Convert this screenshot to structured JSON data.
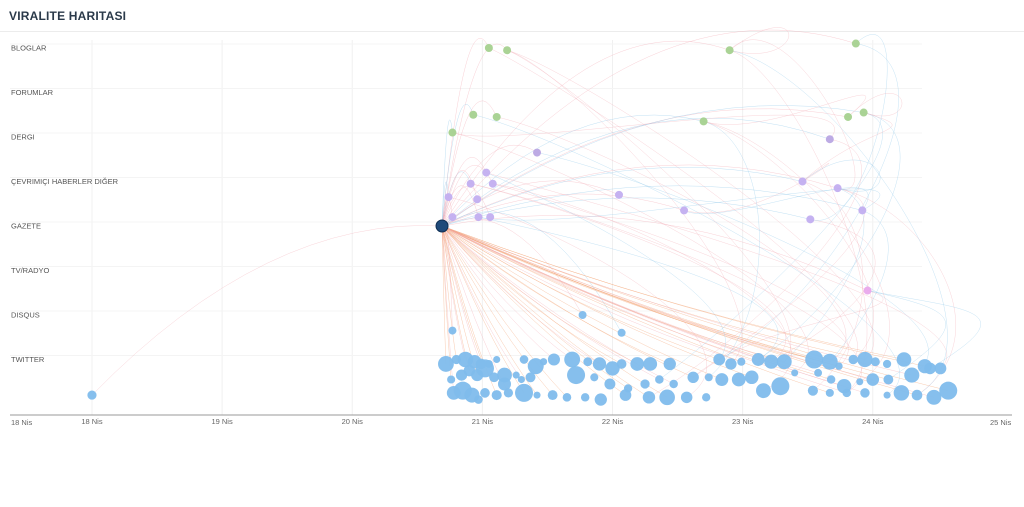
{
  "header": {
    "title": "VIRALITE HARITASI"
  },
  "chart_data": {
    "type": "scatter",
    "title": "VIRALITE HARITASI",
    "categories": [
      "BLOGLAR",
      "FORUMLAR",
      "DERGI",
      "ÇEVRIMIÇI HABERLER DIĞER",
      "GAZETE",
      "TV/RADYO",
      "DISQUS",
      "TWITTER"
    ],
    "x_axis": {
      "unit": "day (Nis)",
      "range": [
        17.25,
        24.95
      ],
      "edge_labels": [
        "18 Nis",
        "25 Nis"
      ],
      "tick_labels": [
        {
          "day": 17.88,
          "label": "18 Nis"
        },
        {
          "day": 18.88,
          "label": "19 Nis"
        },
        {
          "day": 19.88,
          "label": "20 Nis"
        },
        {
          "day": 20.88,
          "label": "21 Nis"
        },
        {
          "day": 21.88,
          "label": "22 Nis"
        },
        {
          "day": 22.88,
          "label": "23 Nis"
        },
        {
          "day": 23.88,
          "label": "24 Nis"
        }
      ]
    },
    "grid": true,
    "colors": {
      "BLOGLAR": "#a5d18f",
      "FORUMLAR": "#a5d18f",
      "DERGI": "#b9a6e3",
      "ÇEVRIMIÇI HABERLER DIĞER": "#c2aef0",
      "GAZETE": "#c2aef0",
      "TV/RADYO": "#e9a8ec",
      "DISQUS": "#7fbcec",
      "TWITTER": "#7fbcec",
      "origin": "#1f4a7a",
      "link_orange": "#f2a070",
      "link_blue": "#8ec7ea",
      "link_pink": "#f2a9b4"
    },
    "origin": {
      "day": 20.57,
      "category": "GAZETE"
    },
    "series": [
      {
        "category": "BLOGLAR",
        "points": [
          [
            20.93,
            0.0
          ],
          [
            21.07,
            0.05
          ],
          [
            22.78,
            0.05
          ],
          [
            23.75,
            -0.1
          ]
        ]
      },
      {
        "category": "FORUMLAR",
        "points": [
          [
            20.81,
            0.5
          ],
          [
            20.99,
            0.55
          ],
          [
            22.58,
            0.65
          ],
          [
            23.69,
            0.55
          ],
          [
            23.81,
            0.45
          ],
          [
            20.65,
            0.9
          ]
        ]
      },
      {
        "category": "DERGI",
        "points": [
          [
            21.3,
            0.35
          ],
          [
            23.55,
            0.05
          ]
        ]
      },
      {
        "category": "ÇEVRIMIÇI HABERLER DIĞER",
        "points": [
          [
            20.91,
            -0.2
          ],
          [
            20.79,
            0.05
          ],
          [
            20.96,
            0.05
          ],
          [
            20.62,
            0.35
          ],
          [
            20.84,
            0.4
          ],
          [
            21.93,
            0.3
          ],
          [
            23.34,
            0.0
          ],
          [
            23.61,
            0.15
          ]
        ]
      },
      {
        "category": "GAZETE",
        "points": [
          [
            20.65,
            -0.2
          ],
          [
            20.85,
            -0.2
          ],
          [
            20.94,
            -0.2
          ],
          [
            22.43,
            -0.35
          ],
          [
            23.4,
            -0.15
          ],
          [
            23.8,
            -0.35
          ]
        ]
      },
      {
        "category": "TV/RADYO",
        "points": [
          [
            23.84,
            0.45
          ]
        ]
      },
      {
        "category": "DISQUS",
        "points": [
          [
            21.65,
            0.0
          ],
          [
            20.65,
            0.35
          ],
          [
            21.95,
            0.4
          ]
        ]
      },
      {
        "category": "TWITTER",
        "points": [
          [
            17.88,
            0.8
          ],
          [
            20.6,
            0.1
          ],
          [
            20.68,
            0.0
          ],
          [
            20.75,
            0.0
          ],
          [
            20.82,
            0.05
          ],
          [
            20.87,
            0.1
          ],
          [
            20.93,
            0.1
          ],
          [
            20.99,
            0.0
          ],
          [
            21.05,
            0.35
          ],
          [
            21.14,
            0.35
          ],
          [
            21.2,
            0.0
          ],
          [
            21.29,
            0.15
          ],
          [
            21.35,
            0.05
          ],
          [
            21.43,
            0.0
          ],
          [
            20.64,
            0.45
          ],
          [
            20.72,
            0.35
          ],
          [
            20.78,
            0.25
          ],
          [
            20.84,
            0.35
          ],
          [
            20.9,
            0.2
          ],
          [
            20.97,
            0.4
          ],
          [
            21.05,
            0.55
          ],
          [
            21.18,
            0.45
          ],
          [
            21.25,
            0.4
          ],
          [
            20.66,
            0.75
          ],
          [
            20.73,
            0.7
          ],
          [
            20.8,
            0.8
          ],
          [
            20.85,
            0.9
          ],
          [
            20.9,
            0.75
          ],
          [
            20.99,
            0.8
          ],
          [
            21.08,
            0.75
          ],
          [
            21.2,
            0.75
          ],
          [
            21.3,
            0.8
          ],
          [
            21.42,
            0.8
          ],
          [
            21.57,
            0.0
          ],
          [
            21.69,
            0.05
          ],
          [
            21.78,
            0.1
          ],
          [
            21.88,
            0.2
          ],
          [
            21.95,
            0.1
          ],
          [
            22.07,
            0.1
          ],
          [
            22.17,
            0.1
          ],
          [
            22.32,
            0.1
          ],
          [
            21.6,
            0.35
          ],
          [
            21.74,
            0.4
          ],
          [
            21.86,
            0.55
          ],
          [
            22.0,
            0.65
          ],
          [
            22.13,
            0.55
          ],
          [
            22.24,
            0.45
          ],
          [
            22.35,
            0.55
          ],
          [
            22.5,
            0.4
          ],
          [
            22.62,
            0.4
          ],
          [
            21.53,
            0.85
          ],
          [
            21.67,
            0.85
          ],
          [
            21.79,
            0.9
          ],
          [
            21.98,
            0.8
          ],
          [
            22.16,
            0.85
          ],
          [
            22.3,
            0.85
          ],
          [
            22.45,
            0.85
          ],
          [
            22.6,
            0.85
          ],
          [
            22.7,
            0.0
          ],
          [
            22.79,
            0.1
          ],
          [
            22.87,
            0.05
          ],
          [
            23.0,
            0.0
          ],
          [
            23.1,
            0.05
          ],
          [
            23.2,
            0.05
          ],
          [
            22.72,
            0.45
          ],
          [
            22.85,
            0.45
          ],
          [
            22.95,
            0.4
          ],
          [
            23.04,
            0.7
          ],
          [
            23.17,
            0.6
          ],
          [
            23.28,
            0.3
          ],
          [
            23.43,
            0.0
          ],
          [
            23.55,
            0.05
          ],
          [
            23.62,
            0.15
          ],
          [
            23.73,
            0.0
          ],
          [
            23.82,
            0.0
          ],
          [
            23.9,
            0.05
          ],
          [
            23.99,
            0.1
          ],
          [
            24.12,
            0.0
          ],
          [
            24.28,
            0.15
          ],
          [
            24.4,
            0.2
          ],
          [
            23.46,
            0.3
          ],
          [
            23.56,
            0.45
          ],
          [
            23.66,
            0.6
          ],
          [
            23.78,
            0.5
          ],
          [
            23.88,
            0.45
          ],
          [
            24.0,
            0.45
          ],
          [
            24.18,
            0.35
          ],
          [
            24.32,
            0.2
          ],
          [
            23.42,
            0.7
          ],
          [
            23.55,
            0.75
          ],
          [
            23.68,
            0.75
          ],
          [
            23.82,
            0.75
          ],
          [
            23.99,
            0.8
          ],
          [
            24.1,
            0.75
          ],
          [
            24.22,
            0.8
          ],
          [
            24.35,
            0.85
          ],
          [
            24.46,
            0.7
          ]
        ]
      }
    ]
  }
}
